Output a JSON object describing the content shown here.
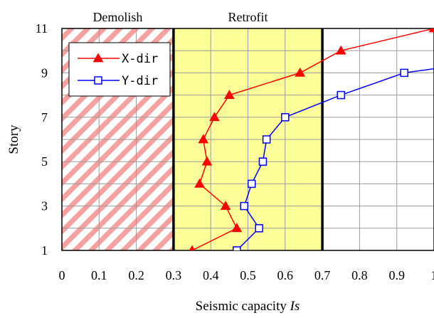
{
  "chart_data": {
    "type": "line",
    "xlabel": "Seismic capacity ",
    "xlabel_var": "Is",
    "ylabel": "Story",
    "xlim": [
      0,
      1
    ],
    "ylim": [
      1,
      11
    ],
    "x_ticks": [
      "0",
      "0.1",
      "0.2",
      "0.3",
      "0.4",
      "0.5",
      "0.6",
      "0.7",
      "0.8",
      "0.9",
      "1"
    ],
    "y_ticks": [
      "1",
      "3",
      "5",
      "7",
      "9",
      "11"
    ],
    "regions": [
      {
        "label": "Demolish",
        "x_from": 0,
        "x_to": 0.3,
        "fill": "hatched",
        "color": "#f28b8b"
      },
      {
        "label": "Retrofit",
        "x_from": 0.3,
        "x_to": 0.7,
        "fill": "solid",
        "color": "#ffff99"
      }
    ],
    "thresholds": [
      0.3,
      0.7
    ],
    "legend_position": "top-left",
    "grid": true,
    "series": [
      {
        "name": "X-dir",
        "color": "#ff0000",
        "marker": "filled-triangle",
        "points": [
          {
            "x": 0.35,
            "y": 1
          },
          {
            "x": 0.47,
            "y": 2
          },
          {
            "x": 0.44,
            "y": 3
          },
          {
            "x": 0.37,
            "y": 4
          },
          {
            "x": 0.39,
            "y": 5
          },
          {
            "x": 0.38,
            "y": 6
          },
          {
            "x": 0.41,
            "y": 7
          },
          {
            "x": 0.45,
            "y": 8
          },
          {
            "x": 0.64,
            "y": 9
          },
          {
            "x": 0.75,
            "y": 10
          },
          {
            "x": 1.0,
            "y": 11
          }
        ]
      },
      {
        "name": "Y-dir",
        "color": "#0000ff",
        "marker": "open-square",
        "points": [
          {
            "x": 0.47,
            "y": 1
          },
          {
            "x": 0.53,
            "y": 2
          },
          {
            "x": 0.49,
            "y": 3
          },
          {
            "x": 0.51,
            "y": 4
          },
          {
            "x": 0.54,
            "y": 5
          },
          {
            "x": 0.55,
            "y": 6
          },
          {
            "x": 0.6,
            "y": 7
          },
          {
            "x": 0.75,
            "y": 8
          },
          {
            "x": 0.92,
            "y": 9
          },
          {
            "x": 1.05,
            "y": 9.3
          }
        ]
      }
    ]
  }
}
